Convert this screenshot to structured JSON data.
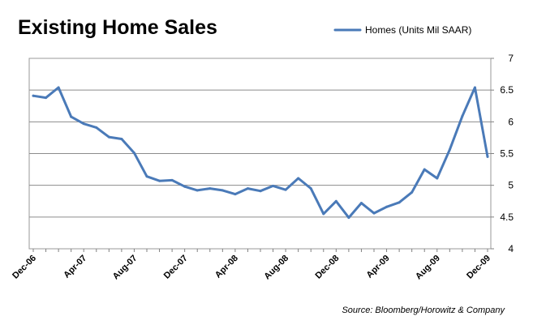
{
  "chart_data": {
    "type": "line",
    "title": "Existing Home Sales",
    "source": "Source: Bloomberg/Horowitz & Company",
    "legend_position": "top-right",
    "grid": true,
    "ylim": [
      4,
      7
    ],
    "y_ticks": [
      "4",
      "4.5",
      "5",
      "5.5",
      "6",
      "6.5",
      "7"
    ],
    "y_tick_values": [
      4,
      4.5,
      5,
      5.5,
      6,
      6.5,
      7
    ],
    "x_tick_labels": [
      "Dec-06",
      "Apr-07",
      "Aug-07",
      "Dec-07",
      "Apr-08",
      "Aug-08",
      "Dec-08",
      "Apr-09",
      "Aug-09",
      "Dec-09"
    ],
    "x": [
      "Dec-06",
      "Jan-07",
      "Feb-07",
      "Mar-07",
      "Apr-07",
      "May-07",
      "Jun-07",
      "Jul-07",
      "Aug-07",
      "Sep-07",
      "Oct-07",
      "Nov-07",
      "Dec-07",
      "Jan-08",
      "Feb-08",
      "Mar-08",
      "Apr-08",
      "May-08",
      "Jun-08",
      "Jul-08",
      "Aug-08",
      "Sep-08",
      "Oct-08",
      "Nov-08",
      "Dec-08",
      "Jan-09",
      "Feb-09",
      "Mar-09",
      "Apr-09",
      "May-09",
      "Jun-09",
      "Jul-09",
      "Aug-09",
      "Sep-09",
      "Oct-09",
      "Nov-09",
      "Dec-09"
    ],
    "series": [
      {
        "name": "Homes (Units Mil SAAR)",
        "color": "#4a7ab8",
        "values": [
          6.41,
          6.38,
          6.54,
          6.08,
          5.97,
          5.91,
          5.76,
          5.73,
          5.51,
          5.14,
          5.07,
          5.08,
          4.98,
          4.92,
          4.95,
          4.92,
          4.86,
          4.95,
          4.91,
          4.99,
          4.93,
          5.11,
          4.95,
          4.55,
          4.75,
          4.49,
          4.72,
          4.56,
          4.66,
          4.73,
          4.89,
          5.25,
          5.11,
          5.56,
          6.09,
          6.54,
          5.45
        ]
      }
    ]
  }
}
